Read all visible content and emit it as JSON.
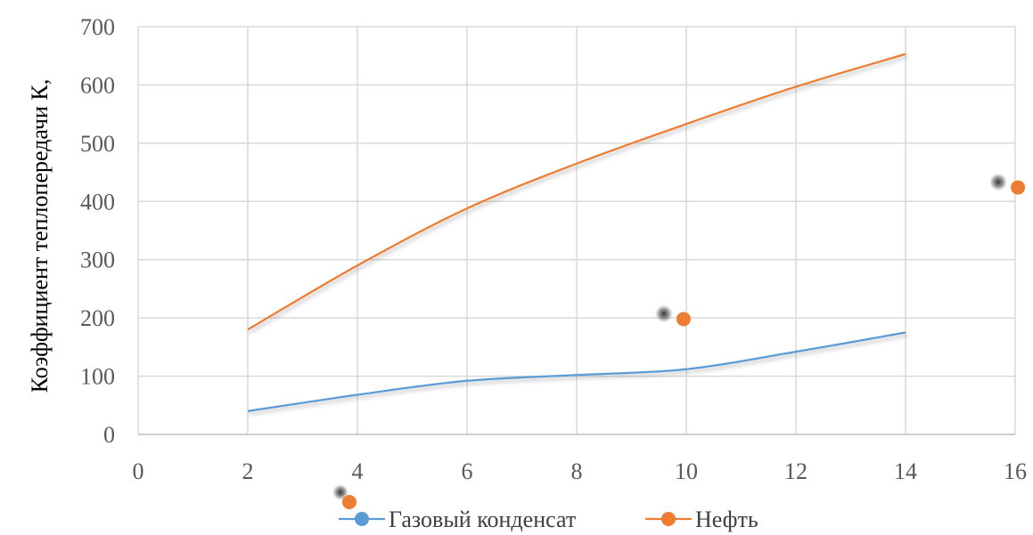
{
  "chart_data": {
    "type": "line",
    "title": "",
    "ylabel": "Коэффициент теплопередачи К,",
    "xlabel": "",
    "xlim": [
      0,
      16
    ],
    "ylim": [
      0,
      700
    ],
    "x_ticks": [
      0,
      2,
      4,
      6,
      8,
      10,
      12,
      14,
      16
    ],
    "y_ticks": [
      0,
      100,
      200,
      300,
      400,
      500,
      600,
      700
    ],
    "grid": true,
    "legend_position": "bottom",
    "series": [
      {
        "name": "Газовый конденсат",
        "color": "#5b9bd5",
        "x": [
          2,
          4,
          6,
          8,
          10,
          12,
          14
        ],
        "y": [
          40,
          68,
          92,
          102,
          112,
          142,
          175
        ]
      },
      {
        "name": "Нефть",
        "color": "#ed7d31",
        "x": [
          2,
          4,
          6,
          8,
          10,
          12,
          14
        ],
        "y": [
          180,
          290,
          388,
          465,
          533,
          597,
          653
        ]
      }
    ],
    "annotations": [
      {
        "name": "marker-1",
        "color": "#ed7d31",
        "x": 9.95,
        "y": 198
      },
      {
        "name": "marker-2",
        "color": "#ed7d31",
        "x": 16.05,
        "y": 424
      }
    ]
  }
}
